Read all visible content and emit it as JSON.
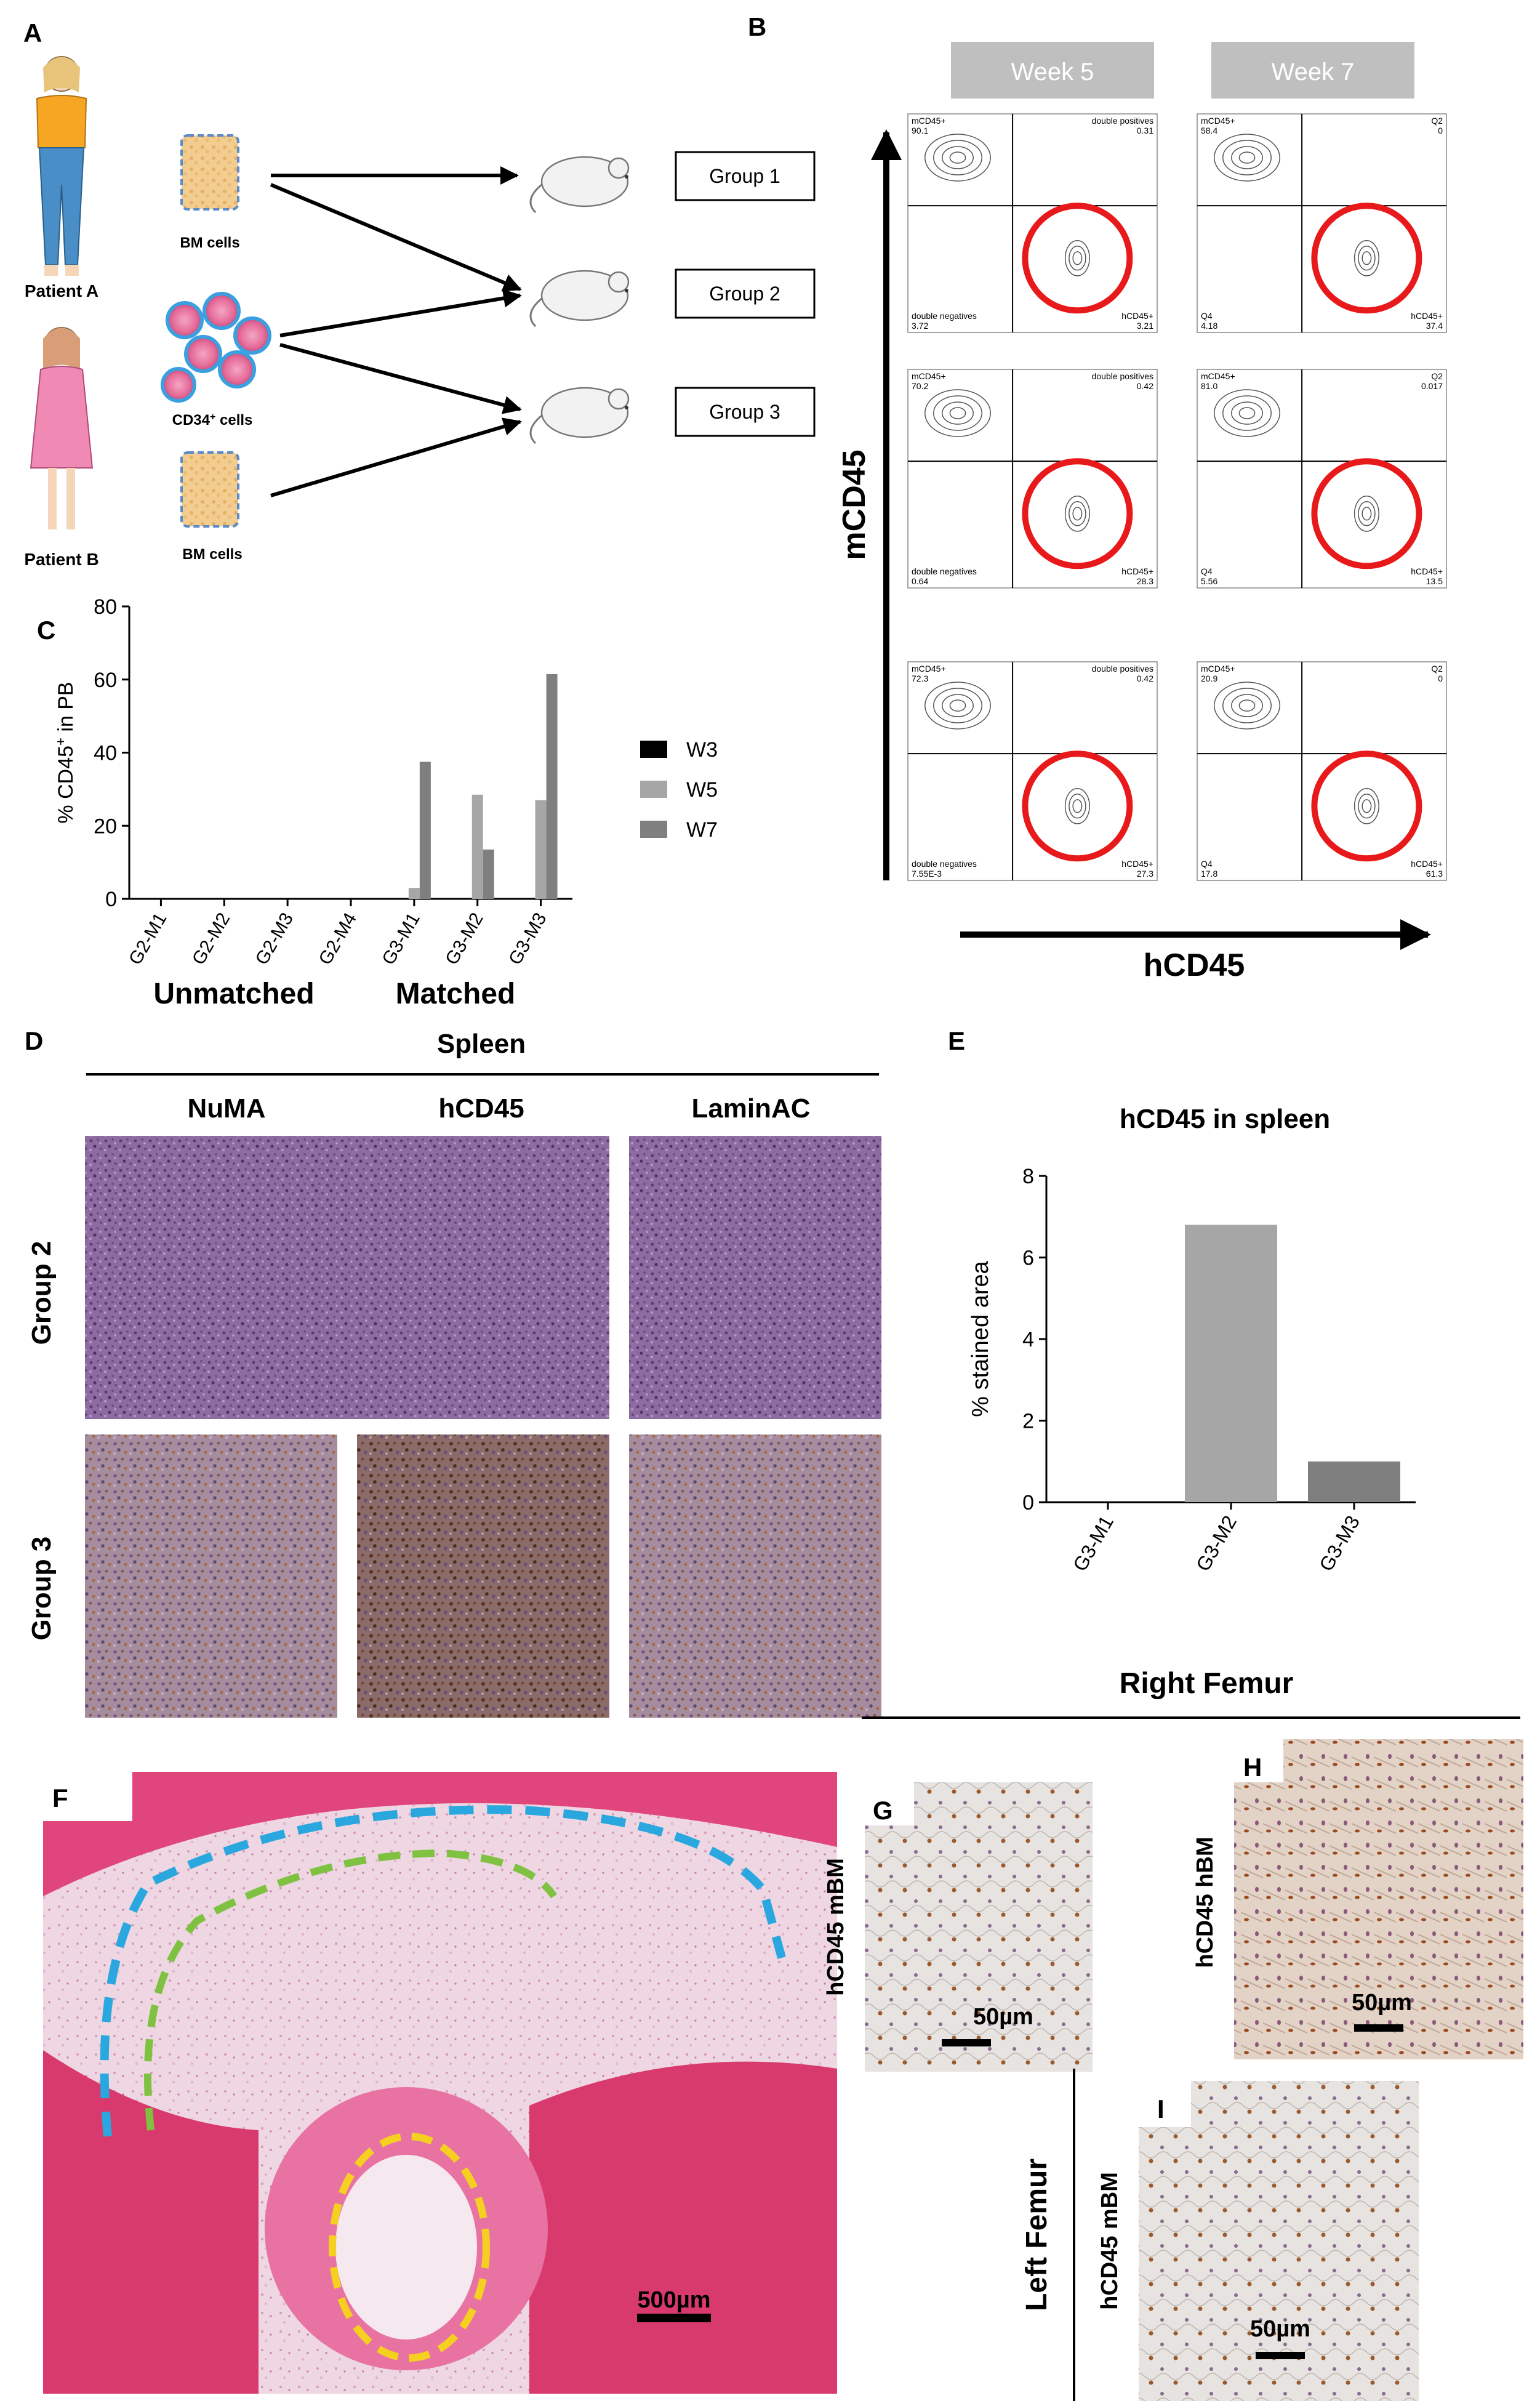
{
  "panel_letters": {
    "A": "A",
    "B": "B",
    "C": "C",
    "D": "D",
    "E": "E",
    "F": "F",
    "G": "G",
    "H": "H",
    "I": "I"
  },
  "panel_a": {
    "patient_a": "Patient A",
    "patient_b": "Patient B",
    "bm_cells_1": "BM cells",
    "cd34_cells": "CD34",
    "cd34_sup": "+",
    "cd34_suffix": " cells",
    "bm_cells_2": "BM cells",
    "group_1": "Group 1",
    "group_2": "Group 2",
    "group_3": "Group 3"
  },
  "panel_b": {
    "week_5": "Week 5",
    "week_7": "Week 7",
    "y_axis_label": "mCD45",
    "x_axis_label": "hCD45",
    "plots": [
      {
        "tl_name": "mCD45+",
        "tl_val": "90.1",
        "tr_name": "double positives",
        "tr_val": "0.31",
        "bl_name": "double negatives",
        "bl_val": "3.72",
        "br_name": "hCD45+",
        "br_val": "3.21"
      },
      {
        "tl_name": "mCD45+",
        "tl_val": "58.4",
        "tr_name": "Q2",
        "tr_val": "0",
        "bl_name": "Q4",
        "bl_val": "4.18",
        "br_name": "hCD45+",
        "br_val": "37.4"
      },
      {
        "tl_name": "mCD45+",
        "tl_val": "70.2",
        "tr_name": "double positives",
        "tr_val": "0.42",
        "bl_name": "double negatives",
        "bl_val": "0.64",
        "br_name": "hCD45+",
        "br_val": "28.3"
      },
      {
        "tl_name": "mCD45+",
        "tl_val": "81.0",
        "tr_name": "Q2",
        "tr_val": "0.017",
        "bl_name": "Q4",
        "bl_val": "5.56",
        "br_name": "hCD45+",
        "br_val": "13.5"
      },
      {
        "tl_name": "mCD45+",
        "tl_val": "72.3",
        "tr_name": "double positives",
        "tr_val": "0.42",
        "bl_name": "double negatives",
        "bl_val": "7.55E-3",
        "br_name": "hCD45+",
        "br_val": "27.3"
      },
      {
        "tl_name": "mCD45+",
        "tl_val": "20.9",
        "tr_name": "Q2",
        "tr_val": "0",
        "bl_name": "Q4",
        "bl_val": "17.8",
        "br_name": "hCD45+",
        "br_val": "61.3"
      }
    ]
  },
  "chart_data": [
    {
      "type": "bar",
      "panel": "C",
      "ylabel_main": "% CD45",
      "ylabel_sup": "+",
      "ylabel_suffix": " in PB",
      "ylim": [
        0,
        80
      ],
      "yticks": [
        0,
        20,
        40,
        60,
        80
      ],
      "categories": [
        "G2-M1",
        "G2-M2",
        "G2-M3",
        "G2-M4",
        "G3-M1",
        "G3-M2",
        "G3-M3"
      ],
      "groups": [
        "Unmatched",
        "Matched"
      ],
      "series": [
        {
          "name": "W3",
          "color": "#000000",
          "values": [
            0,
            0,
            0,
            0,
            0,
            0,
            0
          ]
        },
        {
          "name": "W5",
          "color": "#a6a6a6",
          "values": [
            0,
            0,
            0,
            0,
            3,
            28.5,
            27
          ]
        },
        {
          "name": "W7",
          "color": "#7f7f7f",
          "values": [
            0,
            0,
            0,
            0,
            37.5,
            13.5,
            61.5
          ]
        }
      ],
      "legend": "right"
    },
    {
      "type": "bar",
      "panel": "E",
      "title": "hCD45 in spleen",
      "ylabel": "% stained area",
      "ylim": [
        0,
        8
      ],
      "yticks": [
        0,
        2,
        4,
        6,
        8
      ],
      "categories": [
        "G3-M1",
        "G3-M2",
        "G3-M3"
      ],
      "values": [
        0,
        6.8,
        1.0
      ],
      "colors": [
        "#cfcfcf",
        "#a6a6a6",
        "#7f7f7f"
      ]
    }
  ],
  "panel_d": {
    "header": "Spleen",
    "col_1": "NuMA",
    "col_2": "hCD45",
    "col_3": "LaminAC",
    "row_1": "Group 2",
    "row_2": "Group 3"
  },
  "panel_f": {
    "scale": "500µm"
  },
  "right_femur": {
    "header": "Right Femur",
    "g_label": "hCD45 mBM",
    "g_scale": "50µm",
    "h_label": "hCD45 hBM",
    "h_scale": "50µm"
  },
  "left_femur": {
    "header": "Left Femur",
    "i_label": "hCD45 mBM",
    "i_scale": "50µm"
  },
  "colors": {
    "he_stain": "#e8a0c0",
    "muscle": "#e0467c",
    "gate_circle": "#e8191b",
    "blue_outline": "#2aa7df",
    "green_outline": "#7fc241",
    "yellow_outline": "#f5d020"
  }
}
